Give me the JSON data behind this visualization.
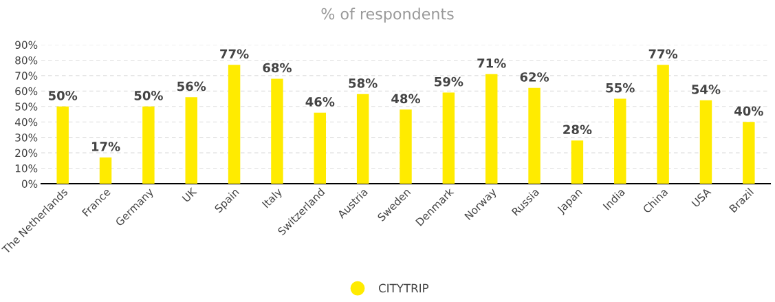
{
  "chart_data": {
    "type": "bar",
    "title": "% of respondents",
    "categories": [
      "The Netherlands",
      "France",
      "Germany",
      "UK",
      "Spain",
      "Italy",
      "Switzerland",
      "Austria",
      "Sweden",
      "Denmark",
      "Norway",
      "Russia",
      "Japan",
      "India",
      "China",
      "USA",
      "Brazil"
    ],
    "series": [
      {
        "name": "CITYTRIP",
        "color": "#ffeb00",
        "values": [
          50,
          17,
          50,
          56,
          77,
          68,
          46,
          58,
          48,
          59,
          71,
          62,
          28,
          55,
          77,
          54,
          40
        ],
        "value_labels": [
          "50%",
          "17%",
          "50%",
          "56%",
          "77%",
          "68%",
          "46%",
          "58%",
          "48%",
          "59%",
          "71%",
          "62%",
          "28%",
          "55%",
          "77%",
          "54%",
          "40%"
        ]
      }
    ],
    "ylim": [
      0,
      90
    ],
    "yticks": [
      {
        "value": 0,
        "label": "0%"
      },
      {
        "value": 10,
        "label": "10%"
      },
      {
        "value": 20,
        "label": "20%"
      },
      {
        "value": 30,
        "label": "30%"
      },
      {
        "value": 40,
        "label": "40%"
      },
      {
        "value": 50,
        "label": "50%"
      },
      {
        "value": 60,
        "label": "60%"
      },
      {
        "value": 70,
        "label": "70%"
      },
      {
        "value": 80,
        "label": "80%"
      },
      {
        "value": 90,
        "label": "90%"
      }
    ],
    "grid": "y",
    "legend": "bottom"
  }
}
